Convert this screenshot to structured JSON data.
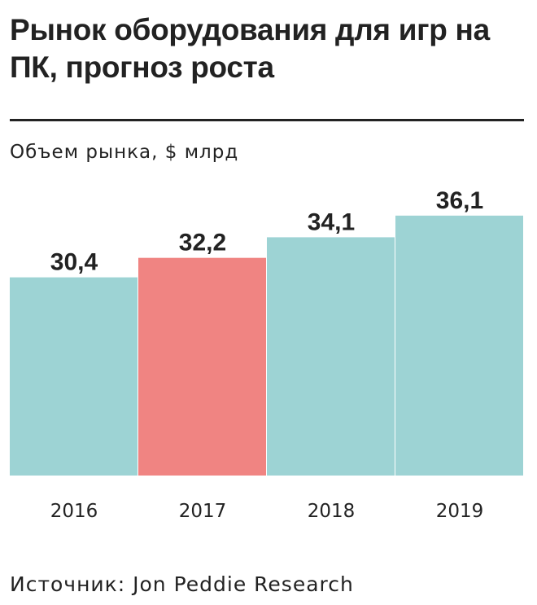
{
  "title": "Рынок оборудования для игр на ПК, прогноз роста",
  "source": "Источник:  Jon Peddie Research",
  "chart_data": {
    "type": "bar",
    "title": "Рынок оборудования для игр на ПК, прогноз роста",
    "ylabel": "Объем рынка, $ млрд",
    "categories": [
      "2016",
      "2017",
      "2018",
      "2019"
    ],
    "values": [
      30.4,
      32.2,
      34.1,
      36.1
    ],
    "value_labels": [
      "30,4",
      "32,2",
      "34,1",
      "36,1"
    ],
    "colors": [
      "#9dd3d4",
      "#f08482",
      "#9dd3d4",
      "#9dd3d4"
    ],
    "grid": false,
    "legend": "none"
  }
}
